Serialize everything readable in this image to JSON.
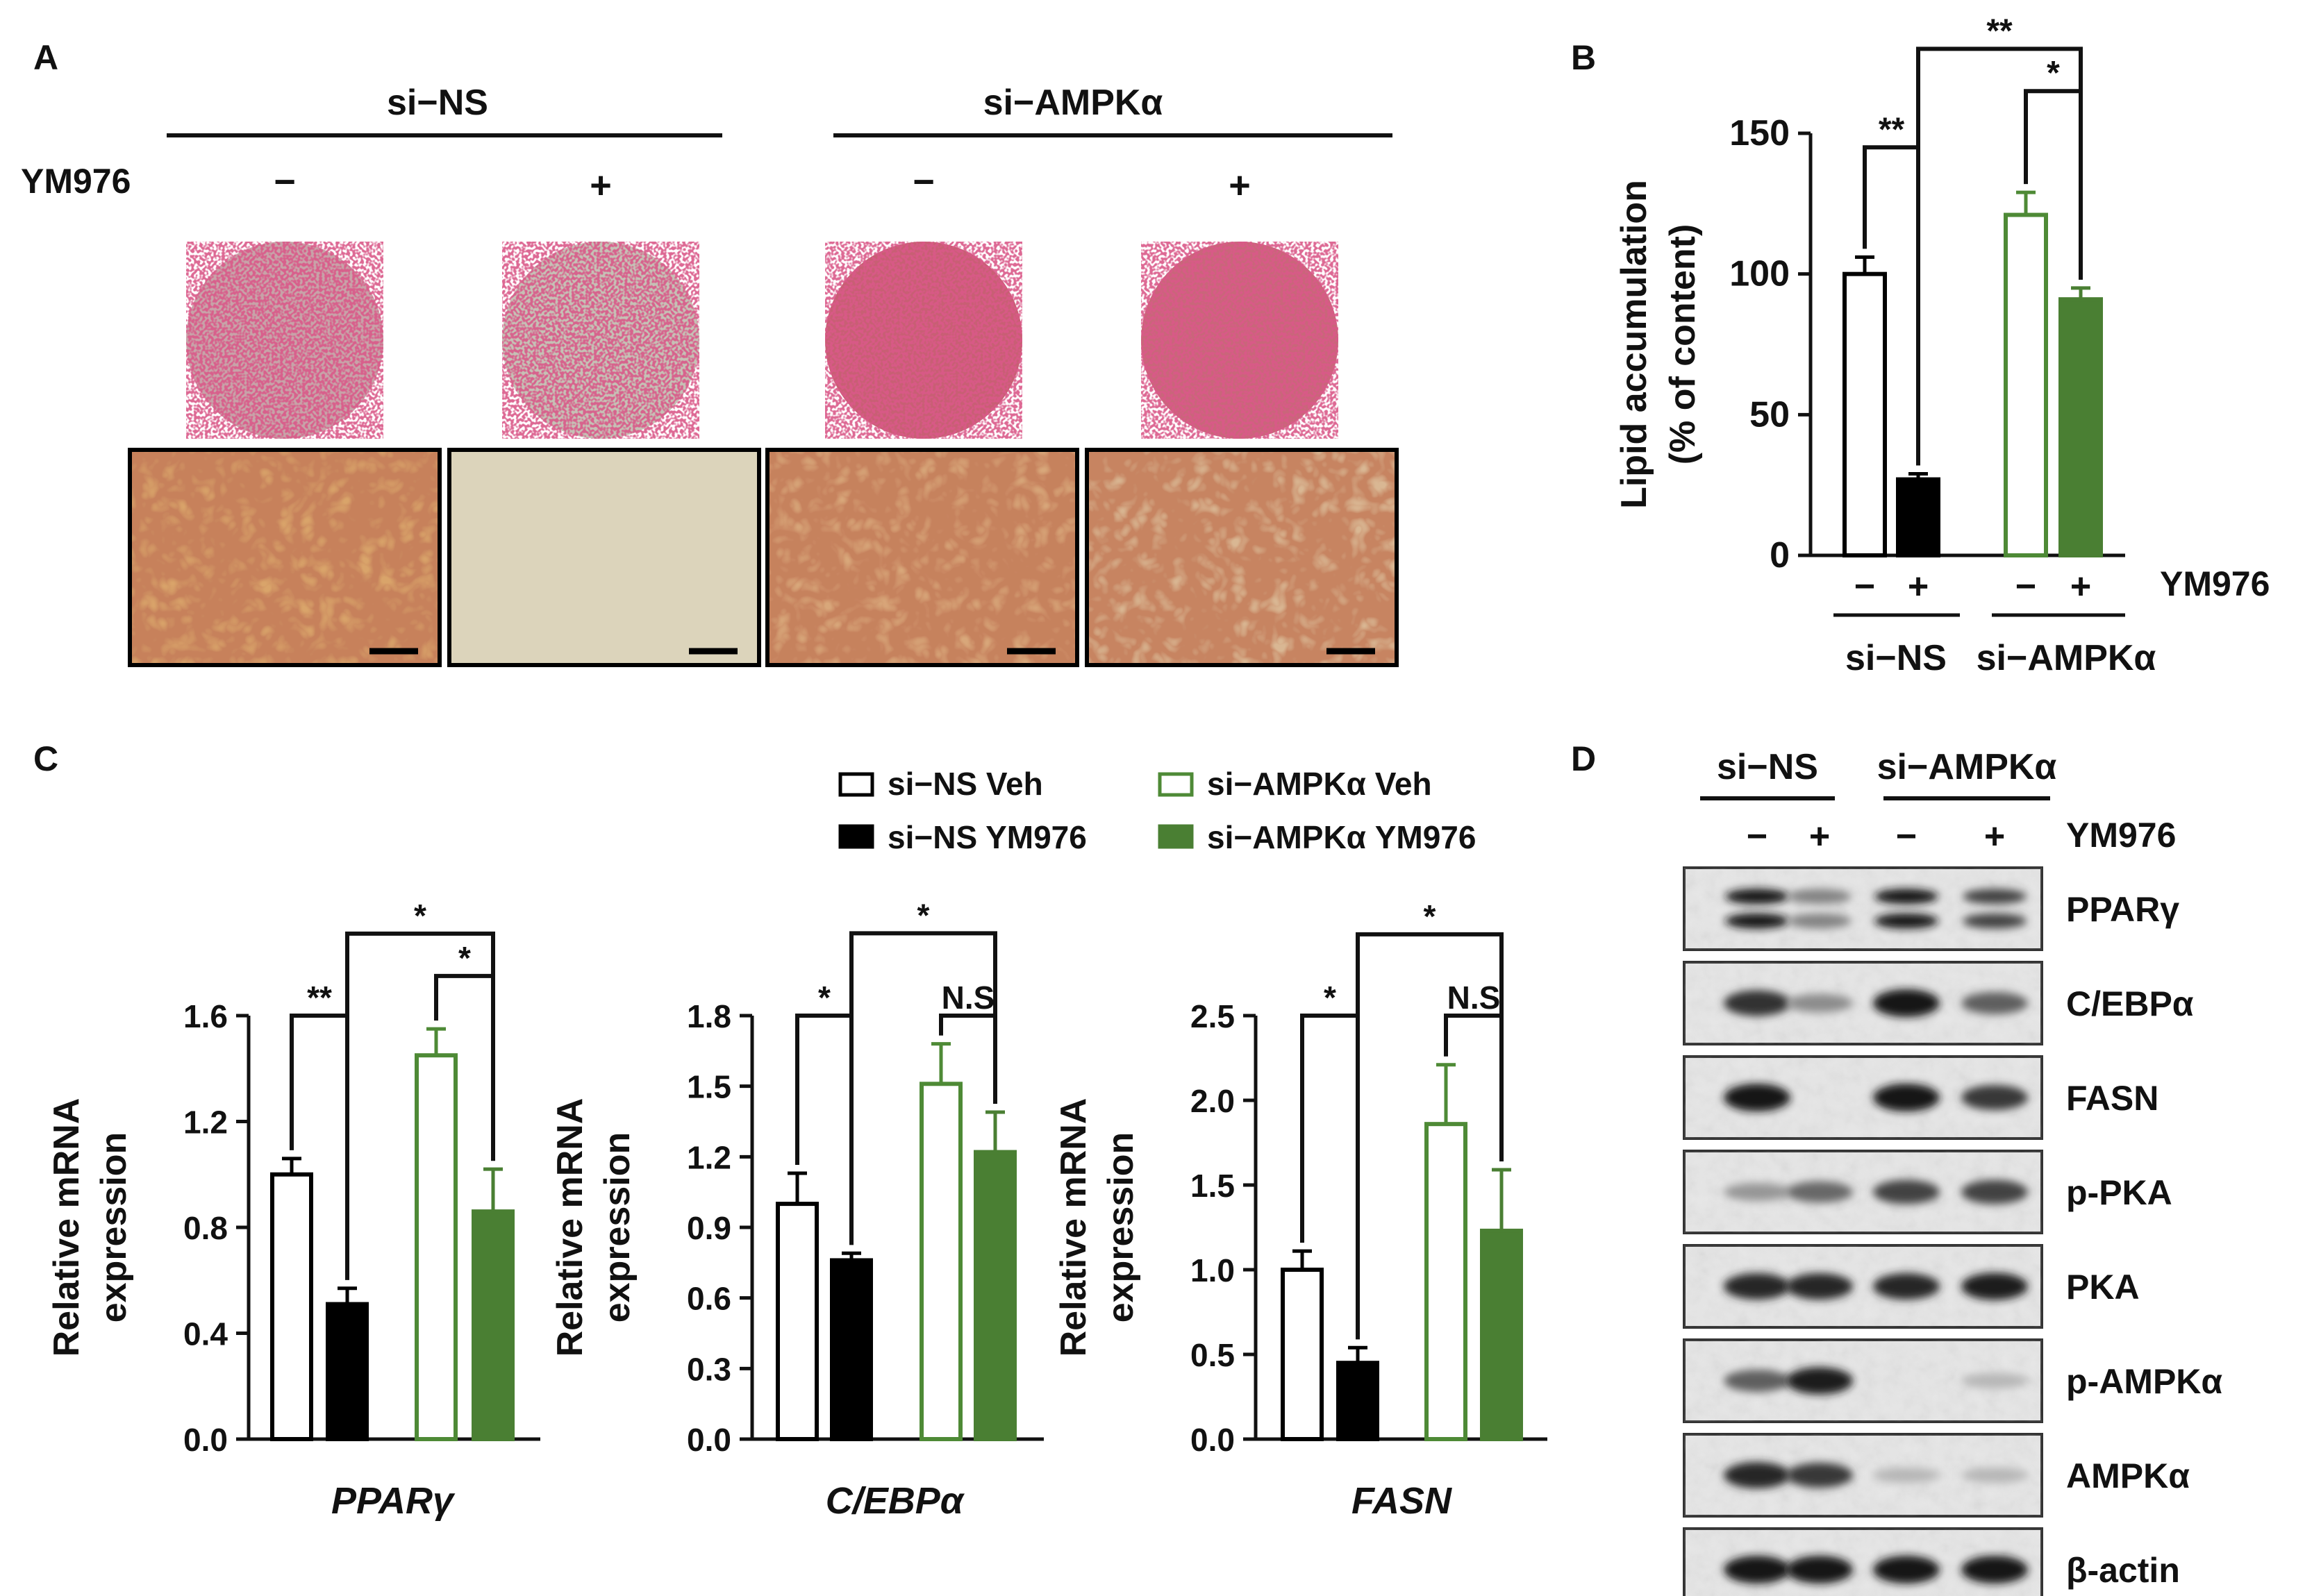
{
  "panel_letters": {
    "a": "A",
    "b": "B",
    "c": "C",
    "d": "D"
  },
  "colors": {
    "white": "#ffffff",
    "black": "#000000",
    "green_outline": "#4e8a36",
    "green_fill": "#4a7f33",
    "axis": "#111111"
  },
  "panel_a": {
    "group_labels": [
      "si−NS",
      "si−AMPKα"
    ],
    "treatment_label": "YM976",
    "signs": [
      "−",
      "+",
      "−",
      "+"
    ],
    "well_tints": [
      "#c7a3a8",
      "#c5c1b5",
      "#c85f74",
      "#c9667a"
    ],
    "micro_tints": [
      "#d9a46a",
      "#dcd4bb",
      "#d8a77a",
      "#d9b793"
    ]
  },
  "legend": [
    "si−NS Veh",
    "si−NS YM976",
    "si−AMPKα Veh",
    "si−AMPKα YM976"
  ],
  "chart_data": [
    {
      "id": "B",
      "type": "bar",
      "ylabel": [
        "Lipid accumulation",
        "(% of content)"
      ],
      "ylim": [
        0,
        150
      ],
      "yticks": [
        0,
        50,
        100,
        150
      ],
      "tick_labels": [
        "0",
        "50",
        "100",
        "150"
      ],
      "categories": [
        "si−NS Veh",
        "si−NS YM976",
        "si−AMPKα Veh",
        "si−AMPKα YM976"
      ],
      "values": [
        100,
        27,
        121,
        91
      ],
      "errors": [
        6,
        2,
        8,
        4
      ],
      "signs": [
        "−",
        "+",
        "−",
        "+"
      ],
      "treatment_label": "YM976",
      "groups": [
        "si−NS",
        "si−AMPKα"
      ],
      "brackets": [
        {
          "from": 0,
          "to": 1,
          "label": "**",
          "y": 145
        },
        {
          "from": 2,
          "to": 3,
          "label": "*",
          "y": 165
        },
        {
          "from": 1,
          "to": 3,
          "label": "**",
          "y": 180
        }
      ]
    },
    {
      "id": "C1",
      "type": "bar",
      "gene": "PPARγ",
      "ylabel": [
        "Relative mRNA",
        "expression"
      ],
      "ylim": [
        0,
        1.6
      ],
      "yticks": [
        0,
        0.4,
        0.8,
        1.2,
        1.6
      ],
      "tick_labels": [
        "0.0",
        "0.4",
        "0.8",
        "1.2",
        "1.6"
      ],
      "values": [
        1.0,
        0.51,
        1.45,
        0.86
      ],
      "errors": [
        0.06,
        0.06,
        0.1,
        0.16
      ],
      "brackets": [
        {
          "from": 0,
          "to": 1,
          "label": "**",
          "y": 1.6
        },
        {
          "from": 2,
          "to": 3,
          "label": "*",
          "y": 1.75
        },
        {
          "from": 1,
          "to": 3,
          "label": "*",
          "y": 1.91
        }
      ]
    },
    {
      "id": "C2",
      "type": "bar",
      "gene": "C/EBPα",
      "ylabel": [
        "Relative mRNA",
        "expression"
      ],
      "ylim": [
        0,
        1.8
      ],
      "yticks": [
        0,
        0.3,
        0.6,
        0.9,
        1.2,
        1.5,
        1.8
      ],
      "tick_labels": [
        "0.0",
        "0.3",
        "0.6",
        "0.9",
        "1.2",
        "1.5",
        "1.8"
      ],
      "values": [
        1.0,
        0.76,
        1.51,
        1.22
      ],
      "errors": [
        0.13,
        0.03,
        0.17,
        0.17
      ],
      "brackets": [
        {
          "from": 0,
          "to": 1,
          "label": "*",
          "y": 1.8
        },
        {
          "from": 2,
          "to": 3,
          "label": "N.S",
          "y": 1.8
        },
        {
          "from": 1,
          "to": 3,
          "label": "*",
          "y": 2.15
        }
      ]
    },
    {
      "id": "C3",
      "type": "bar",
      "gene": "FASN",
      "ylabel": [
        "Relative mRNA",
        "expression"
      ],
      "ylim": [
        0,
        2.5
      ],
      "yticks": [
        0,
        0.5,
        1.0,
        1.5,
        2.0,
        2.5
      ],
      "tick_labels": [
        "0.0",
        "0.5",
        "1.0",
        "1.5",
        "2.0",
        "2.5"
      ],
      "values": [
        1.0,
        0.45,
        1.86,
        1.23
      ],
      "errors": [
        0.11,
        0.09,
        0.35,
        0.36
      ],
      "brackets": [
        {
          "from": 0,
          "to": 1,
          "label": "*",
          "y": 2.5
        },
        {
          "from": 2,
          "to": 3,
          "label": "N.S",
          "y": 2.5
        },
        {
          "from": 1,
          "to": 3,
          "label": "*",
          "y": 2.98
        }
      ]
    }
  ],
  "panel_d": {
    "groups": [
      "si−NS",
      "si−AMPKα"
    ],
    "signs": [
      "−",
      "+",
      "−",
      "+"
    ],
    "treatment_label": "YM976",
    "blots": [
      {
        "label": "PPARγ",
        "bands": 2,
        "intensity": [
          1.0,
          0.4,
          1.0,
          0.75
        ]
      },
      {
        "label": "C/EBPα",
        "bands": 1,
        "intensity": [
          0.85,
          0.35,
          1.0,
          0.6
        ]
      },
      {
        "label": "FASN",
        "bands": 1,
        "intensity": [
          1.0,
          0.0,
          1.0,
          0.8
        ]
      },
      {
        "label": "p-PKA",
        "bands": 1,
        "intensity": [
          0.3,
          0.55,
          0.75,
          0.75
        ]
      },
      {
        "label": "PKA",
        "bands": 1,
        "intensity": [
          0.9,
          0.9,
          0.9,
          0.95
        ]
      },
      {
        "label": "p-AMPKα",
        "bands": 1,
        "intensity": [
          0.6,
          0.95,
          0.0,
          0.12
        ]
      },
      {
        "label": "AMPKα",
        "bands": 1,
        "intensity": [
          0.9,
          0.8,
          0.12,
          0.12
        ]
      },
      {
        "label": "β-actin",
        "bands": 1,
        "intensity": [
          1.0,
          1.0,
          1.0,
          1.0
        ]
      }
    ]
  }
}
